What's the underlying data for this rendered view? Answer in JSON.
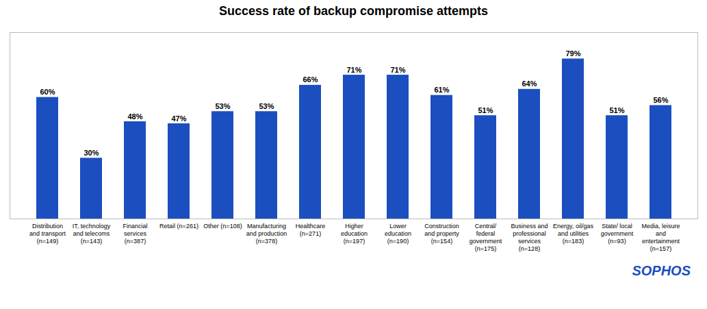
{
  "chart_data": {
    "type": "bar",
    "title": "Success rate of backup compromise attempts",
    "categories": [
      "Distribution\nand transport\n(n=149)",
      "IT, technology\nand telecoms\n(n=143)",
      "Financial\nservices\n(n=387)",
      "Retail (n=261)",
      "Other (n=108)",
      "Manufacturing\nand production\n(n=378)",
      "Healthcare\n(n=271)",
      "Higher\neducation\n(n=197)",
      "Lower\neducation\n(n=190)",
      "Construction\nand property\n(n=154)",
      "Central/\nfederal\ngovernment\n(n=175)",
      "Business and\nprofessional\nservices\n(n=128)",
      "Energy, oil/gas\nand utilities\n(n=183)",
      "State/ local\ngovernment\n(n=93)",
      "Media, leisure\nand\nentertainment\n(n=157)"
    ],
    "values": [
      60,
      30,
      48,
      47,
      53,
      53,
      66,
      71,
      71,
      61,
      51,
      64,
      79,
      51,
      56
    ],
    "value_labels": [
      "60%",
      "30%",
      "48%",
      "47%",
      "53%",
      "53%",
      "66%",
      "71%",
      "71%",
      "61%",
      "51%",
      "64%",
      "79%",
      "51%",
      "56%"
    ],
    "data_labels": true,
    "color": "#1B4FBF",
    "ylim": [
      0,
      92
    ],
    "tick_labels": "x",
    "grid": false,
    "annotations": [
      "SOPHOS"
    ]
  }
}
